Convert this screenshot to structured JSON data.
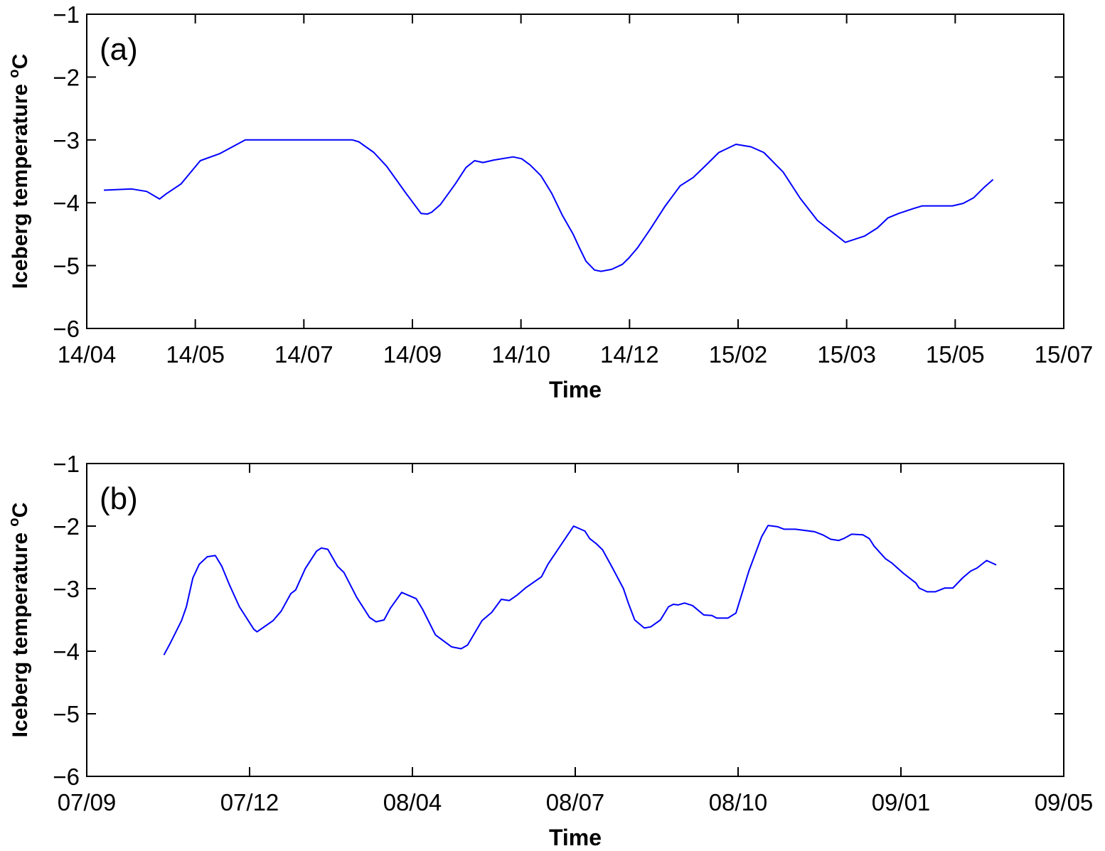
{
  "chart_data": [
    {
      "type": "line",
      "panel_label": "(a)",
      "xlabel": "Time",
      "ylabel": "Iceberg temperature",
      "ylabel_unit": "oC",
      "ylim": [
        -6,
        -1
      ],
      "yticks": [
        -1,
        -2,
        -3,
        -4,
        -5,
        -6
      ],
      "ytick_labels": [
        "−1",
        "−2",
        "−3",
        "−4",
        "−5",
        "−6"
      ],
      "xlim": [
        "2014-04-10",
        "2015-07-10"
      ],
      "xtick_labels": [
        "14/04",
        "14/05",
        "14/07",
        "14/09",
        "14/10",
        "14/12",
        "15/02",
        "15/03",
        "15/05",
        "15/07"
      ],
      "grid": false,
      "line_color": "#0000ff",
      "series": [
        {
          "x": [
            "2014-04-18",
            "2014-05-01",
            "2014-05-08",
            "2014-05-14",
            "2014-05-17",
            "2014-05-24",
            "2014-06-02",
            "2014-06-11",
            "2014-06-23",
            "2014-08-12",
            "2014-08-15",
            "2014-08-22",
            "2014-08-28",
            "2014-09-06",
            "2014-09-13",
            "2014-09-16",
            "2014-09-18",
            "2014-09-22",
            "2014-09-29",
            "2014-10-04",
            "2014-10-08",
            "2014-10-12",
            "2014-10-17",
            "2014-10-26",
            "2014-10-30",
            "2014-11-03",
            "2014-11-08",
            "2014-11-13",
            "2014-11-18",
            "2014-11-23",
            "2014-11-26",
            "2014-11-29",
            "2014-12-03",
            "2014-12-06",
            "2014-12-11",
            "2014-12-16",
            "2014-12-19",
            "2014-12-23",
            "2014-12-29",
            "2015-01-05",
            "2015-01-12",
            "2015-01-18",
            "2015-01-25",
            "2015-01-30",
            "2015-02-07",
            "2015-02-14",
            "2015-02-20",
            "2015-03-01",
            "2015-03-09",
            "2015-03-17",
            "2015-03-24",
            "2015-03-30",
            "2015-04-08",
            "2015-04-14",
            "2015-04-19",
            "2015-04-24",
            "2015-05-01",
            "2015-05-05",
            "2015-05-19",
            "2015-05-24",
            "2015-05-29",
            "2015-06-03",
            "2015-06-07"
          ],
          "y": [
            -3.8,
            -3.78,
            -3.82,
            -3.94,
            -3.86,
            -3.7,
            -3.33,
            -3.22,
            -3.0,
            -3.0,
            -3.03,
            -3.2,
            -3.42,
            -3.85,
            -4.17,
            -4.18,
            -4.15,
            -4.03,
            -3.7,
            -3.44,
            -3.33,
            -3.36,
            -3.32,
            -3.27,
            -3.3,
            -3.4,
            -3.57,
            -3.85,
            -4.2,
            -4.5,
            -4.72,
            -4.93,
            -5.07,
            -5.09,
            -5.06,
            -4.98,
            -4.88,
            -4.72,
            -4.42,
            -4.05,
            -3.73,
            -3.6,
            -3.37,
            -3.2,
            -3.07,
            -3.11,
            -3.2,
            -3.51,
            -3.93,
            -4.28,
            -4.47,
            -4.63,
            -4.53,
            -4.4,
            -4.24,
            -4.17,
            -4.09,
            -4.05,
            -4.05,
            -4.01,
            -3.92,
            -3.75,
            -3.63
          ]
        }
      ]
    },
    {
      "type": "line",
      "panel_label": "(b)",
      "xlabel": "Time",
      "ylabel": "Iceberg temperature",
      "ylabel_unit": "oC",
      "ylim": [
        -6,
        -1
      ],
      "yticks": [
        -1,
        -2,
        -3,
        -4,
        -5,
        -6
      ],
      "ytick_labels": [
        "−1",
        "−2",
        "−3",
        "−4",
        "−5",
        "−6"
      ],
      "xlim": [
        "2007-09-20",
        "2009-05-20"
      ],
      "xtick_labels": [
        "07/09",
        "07/12",
        "08/04",
        "08/07",
        "08/10",
        "09/01",
        "09/05"
      ],
      "grid": false,
      "line_color": "#0000ff",
      "series": [
        {
          "x": [
            "2007-11-07",
            "2007-11-11",
            "2007-11-18",
            "2007-11-21",
            "2007-11-25",
            "2007-11-29",
            "2007-12-04",
            "2007-12-09",
            "2007-12-13",
            "2007-12-18",
            "2007-12-24",
            "2008-01-02",
            "2008-01-04",
            "2008-01-14",
            "2008-01-19",
            "2008-01-25",
            "2008-01-28",
            "2008-02-03",
            "2008-02-10",
            "2008-02-13",
            "2008-02-17",
            "2008-02-23",
            "2008-02-27",
            "2008-03-06",
            "2008-03-14",
            "2008-03-18",
            "2008-03-23",
            "2008-03-27",
            "2008-04-03",
            "2008-04-12",
            "2008-04-16",
            "2008-04-24",
            "2008-05-04",
            "2008-05-10",
            "2008-05-14",
            "2008-05-23",
            "2008-05-29",
            "2008-06-04",
            "2008-06-09",
            "2008-06-14",
            "2008-06-19",
            "2008-06-29",
            "2008-07-03",
            "2008-07-19",
            "2008-07-26",
            "2008-07-29",
            "2008-08-02",
            "2008-08-06",
            "2008-08-12",
            "2008-08-19",
            "2008-08-22",
            "2008-08-26",
            "2008-09-01",
            "2008-09-05",
            "2008-09-11",
            "2008-09-16",
            "2008-09-19",
            "2008-09-22",
            "2008-09-26",
            "2008-10-01",
            "2008-10-08",
            "2008-10-13",
            "2008-10-16",
            "2008-10-23",
            "2008-10-28",
            "2008-11-05",
            "2008-11-13",
            "2008-11-17",
            "2008-11-23",
            "2008-11-27",
            "2008-12-04",
            "2008-12-16",
            "2008-12-21",
            "2008-12-26",
            "2008-12-31",
            "2009-01-03",
            "2009-01-08",
            "2009-01-15",
            "2009-01-19",
            "2009-01-22",
            "2009-01-29",
            "2009-02-02",
            "2009-02-09",
            "2009-02-17",
            "2009-02-19",
            "2009-02-24",
            "2009-03-01",
            "2009-03-07",
            "2009-03-12",
            "2009-03-18",
            "2009-03-23",
            "2009-03-27",
            "2009-04-02",
            "2009-04-08"
          ],
          "y": [
            -4.06,
            -3.87,
            -3.51,
            -3.29,
            -2.83,
            -2.61,
            -2.49,
            -2.47,
            -2.64,
            -2.95,
            -3.29,
            -3.65,
            -3.69,
            -3.51,
            -3.36,
            -3.08,
            -3.02,
            -2.68,
            -2.4,
            -2.35,
            -2.37,
            -2.64,
            -2.74,
            -3.14,
            -3.46,
            -3.53,
            -3.5,
            -3.31,
            -3.06,
            -3.16,
            -3.33,
            -3.74,
            -3.93,
            -3.96,
            -3.9,
            -3.51,
            -3.38,
            -3.17,
            -3.19,
            -3.1,
            -2.99,
            -2.81,
            -2.61,
            -2.0,
            -2.08,
            -2.2,
            -2.28,
            -2.38,
            -2.66,
            -3.0,
            -3.23,
            -3.5,
            -3.63,
            -3.61,
            -3.5,
            -3.29,
            -3.25,
            -3.26,
            -3.23,
            -3.27,
            -3.42,
            -3.43,
            -3.47,
            -3.47,
            -3.39,
            -2.72,
            -2.17,
            -1.99,
            -2.01,
            -2.05,
            -2.05,
            -2.09,
            -2.14,
            -2.21,
            -2.23,
            -2.2,
            -2.13,
            -2.14,
            -2.2,
            -2.32,
            -2.52,
            -2.59,
            -2.75,
            -2.91,
            -2.99,
            -3.05,
            -3.05,
            -2.99,
            -2.99,
            -2.83,
            -2.72,
            -2.67,
            -2.55,
            -2.62
          ]
        }
      ]
    }
  ]
}
